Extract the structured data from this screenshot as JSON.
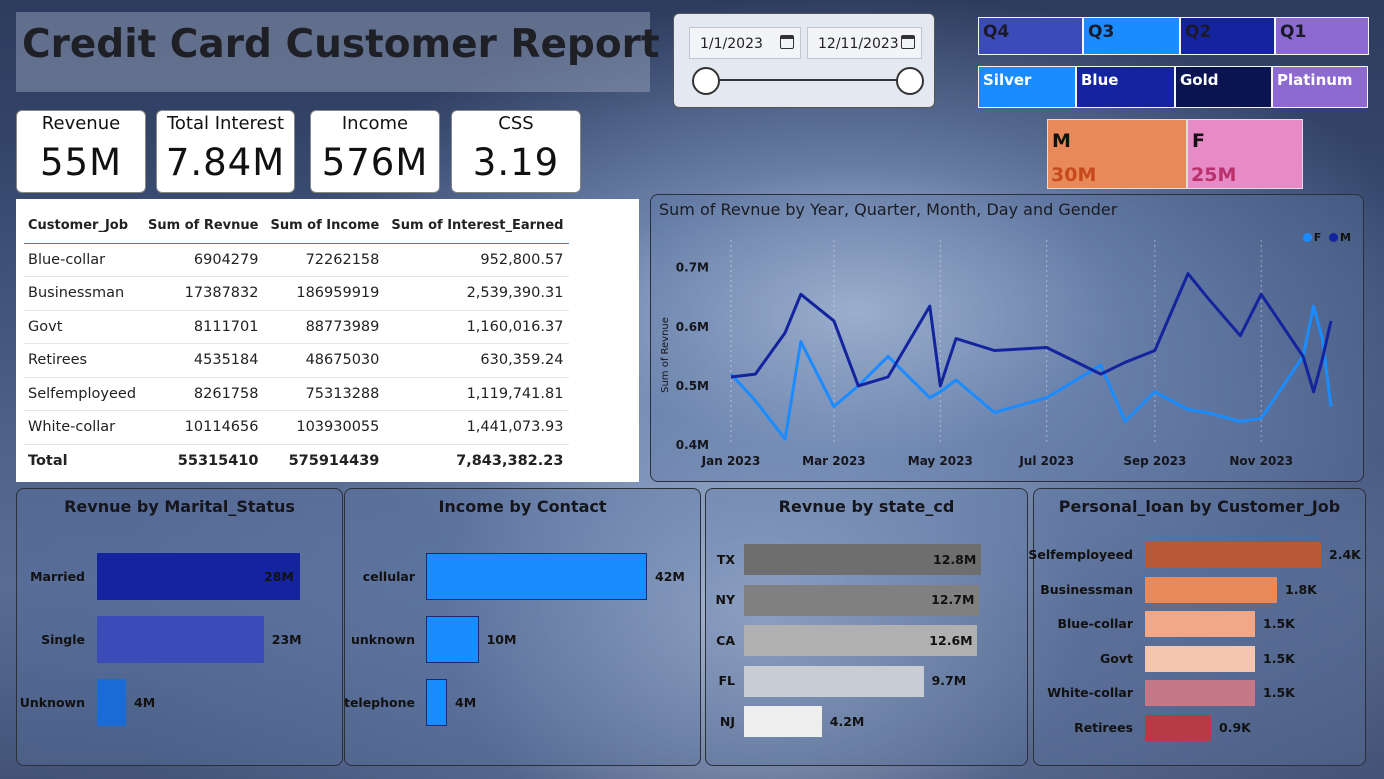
{
  "title": "Credit Card Customer Report",
  "date_slicer": {
    "start": "1/1/2023",
    "end": "12/11/2023"
  },
  "quarters": [
    {
      "label": "Q4",
      "color": "#3b4cb8",
      "text": "#1a1a2a"
    },
    {
      "label": "Q3",
      "color": "#1a8cff",
      "text": "#1a1a2a"
    },
    {
      "label": "Q2",
      "color": "#13249e",
      "text": "#1a1a2a"
    },
    {
      "label": "Q1",
      "color": "#8c6ad0",
      "text": "#1a1a2a"
    }
  ],
  "card_categories": [
    {
      "label": "Silver",
      "color": "#1a8cff"
    },
    {
      "label": "Blue",
      "color": "#13249e"
    },
    {
      "label": "Gold",
      "color": "#0a1450"
    },
    {
      "label": "Platinum",
      "color": "#8c6ad0"
    }
  ],
  "gender": [
    {
      "label": "M",
      "value": "30M",
      "color": "#e8895a",
      "value_color": "#c74a1c"
    },
    {
      "label": "F",
      "value": "25M",
      "color": "#e88ac6",
      "value_color": "#b8306c"
    }
  ],
  "kpis": [
    {
      "label": "Revenue",
      "value": "55M"
    },
    {
      "label": "Total Interest",
      "value": "7.84M"
    },
    {
      "label": "Income",
      "value": "576M"
    },
    {
      "label": "CSS",
      "value": "3.19"
    }
  ],
  "table": {
    "headers": [
      "Customer_Job",
      "Sum of Revnue",
      "Sum of Income",
      "Sum of Interest_Earned"
    ],
    "rows": [
      [
        "Blue-collar",
        "6904279",
        "72262158",
        "952,800.57"
      ],
      [
        "Businessman",
        "17387832",
        "186959919",
        "2,539,390.31"
      ],
      [
        "Govt",
        "8111701",
        "88773989",
        "1,160,016.37"
      ],
      [
        "Retirees",
        "4535184",
        "48675030",
        "630,359.24"
      ],
      [
        "Selfemployeed",
        "8261758",
        "75313288",
        "1,119,741.81"
      ],
      [
        "White-collar",
        "10114656",
        "103930055",
        "1,441,073.93"
      ]
    ],
    "total": [
      "Total",
      "55315410",
      "575914439",
      "7,843,382.23"
    ]
  },
  "line_chart": {
    "title": "Sum of Revnue by Year, Quarter, Month, Day and Gender",
    "ylabel": "Sum of Revnue",
    "legend": [
      {
        "name": "F",
        "color": "#1a8cff"
      },
      {
        "name": "M",
        "color": "#13249e"
      }
    ],
    "y_ticks": [
      "0.7M",
      "0.6M",
      "0.5M",
      "0.4M"
    ],
    "x_ticks": [
      "Jan 2023",
      "Mar 2023",
      "May 2023",
      "Jul 2023",
      "Sep 2023",
      "Nov 2023"
    ]
  },
  "chart_data": [
    {
      "type": "line",
      "title": "Sum of Revnue by Year, Quarter, Month, Day and Gender",
      "ylabel": "Sum of Revnue",
      "ylim": [
        0.4,
        0.73
      ],
      "x": [
        "2023-01-01",
        "2023-01-15",
        "2023-02-01",
        "2023-02-10",
        "2023-03-01",
        "2023-03-15",
        "2023-04-01",
        "2023-04-25",
        "2023-05-01",
        "2023-05-10",
        "2023-06-01",
        "2023-07-01",
        "2023-08-01",
        "2023-08-15",
        "2023-09-01",
        "2023-09-20",
        "2023-10-01",
        "2023-10-20",
        "2023-11-01",
        "2023-11-25",
        "2023-12-01",
        "2023-12-06",
        "2023-12-11"
      ],
      "series": [
        {
          "name": "F",
          "values": [
            0.52,
            0.475,
            0.41,
            0.575,
            0.465,
            0.5,
            0.55,
            0.48,
            0.49,
            0.51,
            0.455,
            0.48,
            0.535,
            0.44,
            0.49,
            0.46,
            0.455,
            0.44,
            0.445,
            0.55,
            0.635,
            0.58,
            0.465
          ]
        },
        {
          "name": "M",
          "values": [
            0.515,
            0.52,
            0.59,
            0.655,
            0.61,
            0.5,
            0.515,
            0.635,
            0.5,
            0.58,
            0.56,
            0.565,
            0.52,
            0.54,
            0.56,
            0.69,
            0.65,
            0.585,
            0.655,
            0.55,
            0.49,
            0.545,
            0.61
          ]
        }
      ]
    },
    {
      "type": "bar",
      "title": "Revnue by Marital_Status",
      "categories": [
        "Married",
        "Single",
        "Unknown"
      ],
      "values": [
        28,
        23,
        4
      ],
      "labels": [
        "28M",
        "23M",
        "4M"
      ],
      "colors": [
        "#13249e",
        "#3b4cb8",
        "#1a6cd4"
      ]
    },
    {
      "type": "bar",
      "title": "Income by Contact",
      "categories": [
        "cellular",
        "unknown",
        "telephone"
      ],
      "values": [
        42,
        10,
        4
      ],
      "labels": [
        "42M",
        "10M",
        "4M"
      ],
      "colors": [
        "#1a8cff",
        "#1a8cff",
        "#1a8cff"
      ]
    },
    {
      "type": "bar",
      "title": "Revnue by state_cd",
      "categories": [
        "TX",
        "NY",
        "CA",
        "FL",
        "NJ"
      ],
      "values": [
        12.8,
        12.7,
        12.6,
        9.7,
        4.2
      ],
      "labels": [
        "12.8M",
        "12.7M",
        "12.6M",
        "9.7M",
        "4.2M"
      ],
      "colors": [
        "#6e6e6e",
        "#808080",
        "#b0b0b0",
        "#c8ccd4",
        "#eeeeee"
      ]
    },
    {
      "type": "bar",
      "title": "Personal_loan by Customer_Job",
      "categories": [
        "Selfemployeed",
        "Businessman",
        "Blue-collar",
        "Govt",
        "White-collar",
        "Retirees"
      ],
      "values": [
        2.4,
        1.8,
        1.5,
        1.5,
        1.5,
        0.9
      ],
      "labels": [
        "2.4K",
        "1.8K",
        "1.5K",
        "1.5K",
        "1.5K",
        "0.9K"
      ],
      "colors": [
        "#b85a36",
        "#e8895a",
        "#f0a888",
        "#f5c6ae",
        "#c47888",
        "#b83a46"
      ]
    }
  ]
}
